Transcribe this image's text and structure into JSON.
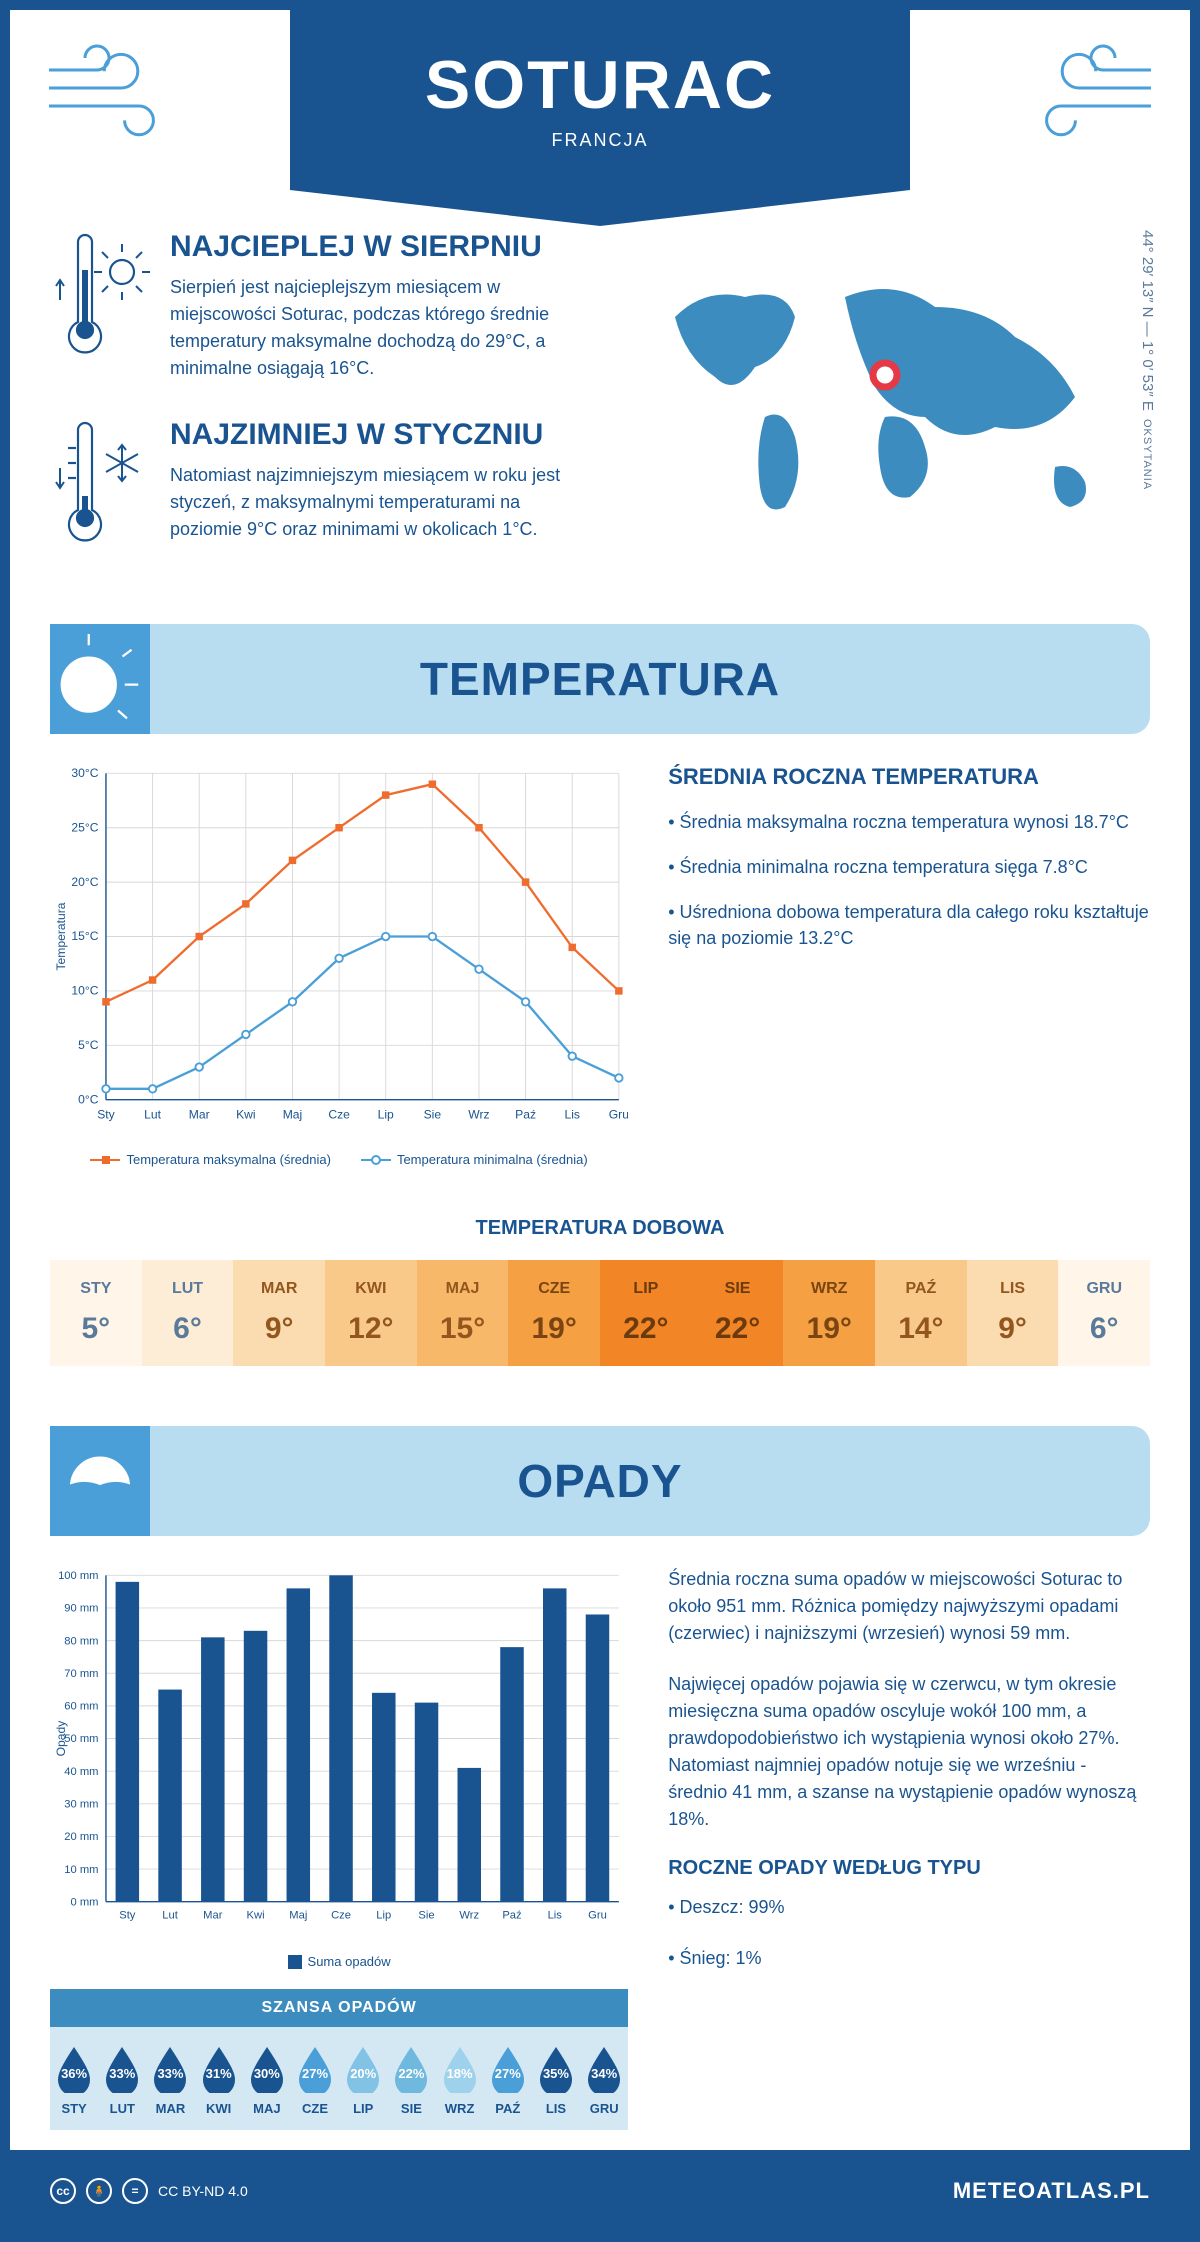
{
  "header": {
    "title": "SOTURAC",
    "country": "FRANCJA"
  },
  "coords": {
    "lat": "44° 29′ 13″ N — 1° 0′ 53″ E",
    "region": "OKSYTANIA"
  },
  "warmest": {
    "title": "NAJCIEPLEJ W SIERPNIU",
    "text": "Sierpień jest najcieplejszym miesiącem w miejscowości Soturac, podczas którego średnie temperatury maksymalne dochodzą do 29°C, a minimalne osiągają 16°C."
  },
  "coldest": {
    "title": "NAJZIMNIEJ W STYCZNIU",
    "text": "Natomiast najzimniejszym miesiącem w roku jest styczeń, z maksymalnymi temperaturami na poziomie 9°C oraz minimami w okolicach 1°C."
  },
  "section_temp": "TEMPERATURA",
  "temp_chart": {
    "type": "line",
    "months": [
      "Sty",
      "Lut",
      "Mar",
      "Kwi",
      "Maj",
      "Cze",
      "Lip",
      "Sie",
      "Wrz",
      "Paź",
      "Lis",
      "Gru"
    ],
    "max_series": [
      9,
      11,
      15,
      18,
      22,
      25,
      28,
      29,
      25,
      20,
      14,
      10
    ],
    "min_series": [
      1,
      1,
      3,
      6,
      9,
      13,
      15,
      15,
      12,
      9,
      4,
      2
    ],
    "max_color": "#ef6c2f",
    "min_color": "#4a9fd8",
    "grid_color": "#d8d8d8",
    "axis_color": "#1a5490",
    "ylim": [
      0,
      30
    ],
    "ytick_step": 5,
    "ylabel": "Temperatura",
    "legend_max": "Temperatura maksymalna (średnia)",
    "legend_min": "Temperatura minimalna (średnia)"
  },
  "temp_info": {
    "title": "ŚREDNIA ROCZNA TEMPERATURA",
    "bullet1": "• Średnia maksymalna roczna temperatura wynosi 18.7°C",
    "bullet2": "• Średnia minimalna roczna temperatura sięga 7.8°C",
    "bullet3": "• Uśredniona dobowa temperatura dla całego roku kształtuje się na poziomie 13.2°C"
  },
  "daily_title": "TEMPERATURA DOBOWA",
  "daily": {
    "months": [
      "STY",
      "LUT",
      "MAR",
      "KWI",
      "MAJ",
      "CZE",
      "LIP",
      "SIE",
      "WRZ",
      "PAŹ",
      "LIS",
      "GRU"
    ],
    "values": [
      "5°",
      "6°",
      "9°",
      "12°",
      "15°",
      "19°",
      "22°",
      "22°",
      "19°",
      "14°",
      "9°",
      "6°"
    ],
    "bg_colors": [
      "#fff5e9",
      "#fdecd6",
      "#fbdbb0",
      "#f9c98a",
      "#f7b86a",
      "#f5a043",
      "#f28525",
      "#f28525",
      "#f5a043",
      "#f9c98a",
      "#fbdbb0",
      "#fff5e9"
    ],
    "text_colors": [
      "#5a7a9a",
      "#5a7a9a",
      "#93561d",
      "#93561d",
      "#93561d",
      "#7a4512",
      "#6b3a0d",
      "#6b3a0d",
      "#7a4512",
      "#93561d",
      "#93561d",
      "#5a7a9a"
    ]
  },
  "section_precip": "OPADY",
  "precip_chart": {
    "type": "bar",
    "months": [
      "Sty",
      "Lut",
      "Mar",
      "Kwi",
      "Maj",
      "Cze",
      "Lip",
      "Sie",
      "Wrz",
      "Paź",
      "Lis",
      "Gru"
    ],
    "values": [
      98,
      65,
      81,
      83,
      96,
      100,
      64,
      61,
      41,
      78,
      96,
      88
    ],
    "bar_color": "#1a5490",
    "grid_color": "#d8d8d8",
    "ylim": [
      0,
      100
    ],
    "ytick_step": 10,
    "ylabel": "Opady",
    "legend": "Suma opadów"
  },
  "precip_info": {
    "p1": "Średnia roczna suma opadów w miejscowości Soturac to około 951 mm. Różnica pomiędzy najwyższymi opadami (czerwiec) i najniższymi (wrzesień) wynosi 59 mm.",
    "p2": "Najwięcej opadów pojawia się w czerwcu, w tym okresie miesięczna suma opadów oscyluje wokół 100 mm, a prawdopodobieństwo ich wystąpienia wynosi około 27%. Natomiast najmniej opadów notuje się we wrześniu - średnio 41 mm, a szanse na wystąpienie opadów wynoszą 18%.",
    "types_title": "ROCZNE OPADY WEDŁUG TYPU",
    "type1": "• Deszcz: 99%",
    "type2": "• Śnieg: 1%"
  },
  "chance": {
    "title": "SZANSA OPADÓW",
    "months": [
      "STY",
      "LUT",
      "MAR",
      "KWI",
      "MAJ",
      "CZE",
      "LIP",
      "SIE",
      "WRZ",
      "PAŹ",
      "LIS",
      "GRU"
    ],
    "values": [
      "36%",
      "33%",
      "33%",
      "31%",
      "30%",
      "27%",
      "20%",
      "22%",
      "18%",
      "27%",
      "35%",
      "34%"
    ],
    "drop_colors": [
      "#1a5490",
      "#1a5490",
      "#1a5490",
      "#1a5490",
      "#1a5490",
      "#4a9fd8",
      "#82c3e5",
      "#6fb8de",
      "#9ed1ec",
      "#4a9fd8",
      "#1a5490",
      "#1a5490"
    ]
  },
  "footer": {
    "license": "CC BY-ND 4.0",
    "site": "METEOATLAS.PL"
  }
}
